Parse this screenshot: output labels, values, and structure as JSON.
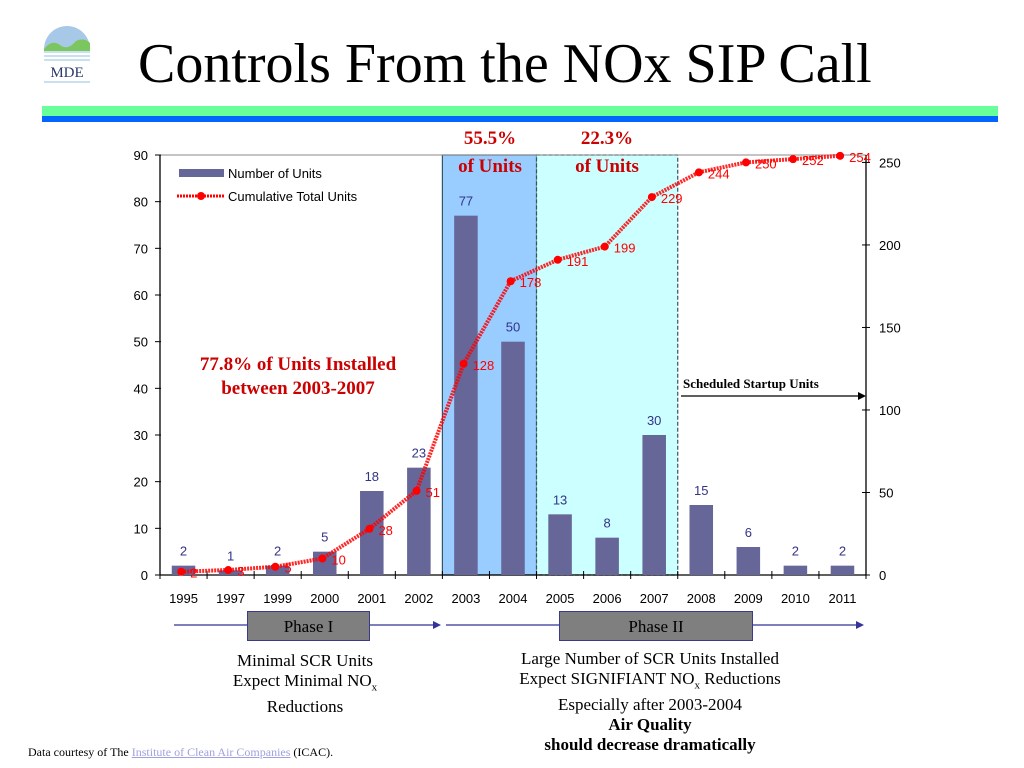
{
  "slide": {
    "title": "Controls From the NOx SIP Call",
    "logo_text": "MDE",
    "colors": {
      "band_green": "#66ff99",
      "band_blue": "#0066ff",
      "bar": "#666699",
      "line": "#ff0000",
      "highlight_2003_2004": "#99ccff",
      "highlight_2005_2007": "#ccffff",
      "annotation_red": "#cc0000"
    }
  },
  "annotations": {
    "pct_2003_2004": "55.5%",
    "pct_2003_2004_sub": "of Units",
    "pct_2005_2007": "22.3%",
    "pct_2005_2007_sub": "of Units",
    "installed_line1": "77.8% of Units Installed",
    "installed_line2": "between 2003-2007",
    "scheduled": "Scheduled Startup Units"
  },
  "phases": {
    "phase1_label": "Phase I",
    "phase2_label": "Phase II",
    "phase1_desc": [
      "Minimal SCR Units",
      "Expect Minimal NO",
      "x",
      "Reductions"
    ],
    "phase2_desc": {
      "line1": "Large Number of  SCR Units Installed",
      "line2a": "Expect SIGNIFIANT NO",
      "line2sub": "x",
      "line2b": " Reductions",
      "line3": "Especially after 2003-2004",
      "line4": "Air Quality",
      "line5": "should decrease dramatically"
    }
  },
  "footer": {
    "prefix": "Data courtesy of The ",
    "link": "Institute of Clean Air Companies",
    "suffix": " (ICAC)."
  },
  "chart_data": {
    "type": "bar",
    "title": "",
    "categories": [
      "1995",
      "1997",
      "1999",
      "2000",
      "2001",
      "2002",
      "2003",
      "2004",
      "2005",
      "2006",
      "2007",
      "2008",
      "2009",
      "2010",
      "2011"
    ],
    "series": [
      {
        "name": "Number of Units",
        "type": "bar",
        "axis": "left",
        "values": [
          2,
          1,
          2,
          5,
          18,
          23,
          77,
          50,
          13,
          8,
          30,
          15,
          6,
          2,
          2
        ]
      },
      {
        "name": "Cumulative Total Units",
        "type": "line",
        "axis": "right",
        "values": [
          2,
          3,
          5,
          10,
          28,
          51,
          128,
          178,
          191,
          199,
          229,
          244,
          250,
          252,
          254
        ]
      }
    ],
    "left_axis": {
      "ylim": [
        0,
        90
      ],
      "ticks": [
        0,
        10,
        20,
        30,
        40,
        50,
        60,
        70,
        80,
        90
      ]
    },
    "right_axis": {
      "ylim": [
        0,
        254.5
      ],
      "ticks": [
        0,
        50,
        100,
        150,
        200,
        250
      ]
    },
    "legend": {
      "placement": "top-left",
      "entries": [
        "Number of Units",
        "Cumulative Total Units"
      ]
    },
    "highlights": [
      {
        "from": "2003",
        "to": "2004",
        "label": "55.5% of Units"
      },
      {
        "from": "2005",
        "to": "2007",
        "label": "22.3% of Units"
      }
    ],
    "grid": false,
    "xlabel": "",
    "ylabel": ""
  }
}
